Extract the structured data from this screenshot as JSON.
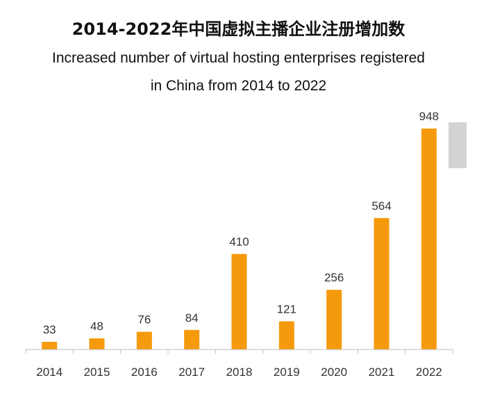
{
  "title_cn": "2014-2022年中国虚拟主播企业注册增加数",
  "title_en_line1": "Increased number of virtual hosting enterprises registered",
  "title_en_line2": "in China from 2014 to 2022",
  "bar_color": "#f59a0c",
  "scrollbar_color": "#d3d3d3",
  "chart_data": {
    "type": "bar",
    "title": "2014-2022年中国虚拟主播企业注册增加数",
    "subtitle": "Increased number of virtual hosting enterprises registered in China from 2014 to 2022",
    "categories": [
      "2014",
      "2015",
      "2016",
      "2017",
      "2018",
      "2019",
      "2020",
      "2021",
      "2022"
    ],
    "values": [
      33,
      48,
      76,
      84,
      410,
      121,
      256,
      564,
      948
    ],
    "xlabel": "",
    "ylabel": "",
    "ylim": [
      0,
      948
    ],
    "grid": false,
    "legend": "none"
  }
}
